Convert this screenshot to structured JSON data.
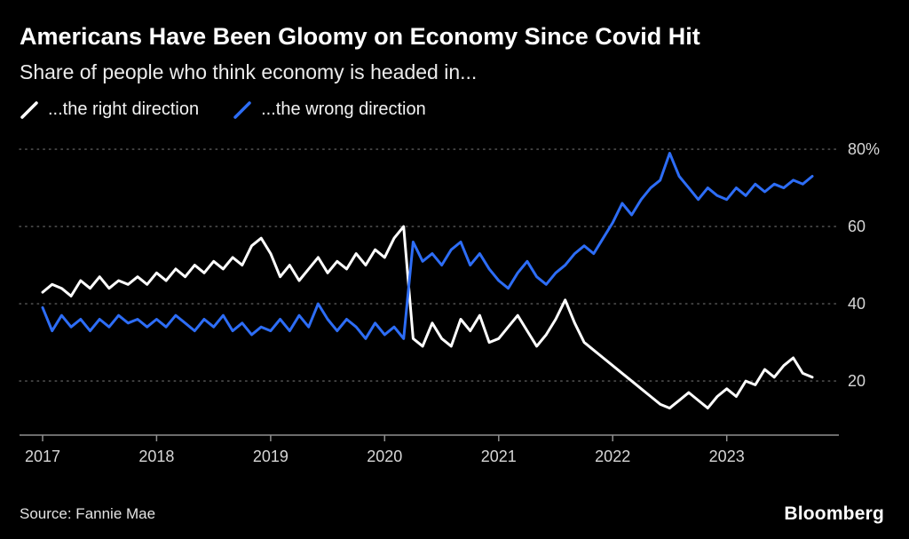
{
  "header": {
    "title": "Americans Have Been Gloomy on Economy Since Covid Hit",
    "subtitle": "Share of people who think economy is headed in..."
  },
  "legend": {
    "items": [
      {
        "label": "...the right direction",
        "color": "#ffffff"
      },
      {
        "label": "...the wrong direction",
        "color": "#2d6df6"
      }
    ]
  },
  "chart_data": {
    "type": "line",
    "title": "Americans Have Been Gloomy on Economy Since Covid Hit",
    "subtitle": "Share of people who think economy is headed in...",
    "x_unit": "month",
    "x_start": "2017-01",
    "x_end": "2023-10",
    "x_tick_labels": [
      "2017",
      "2018",
      "2019",
      "2020",
      "2021",
      "2022",
      "2023"
    ],
    "yticks": [
      20,
      40,
      60,
      80
    ],
    "ytick_labels": [
      "20",
      "40",
      "60",
      "80%"
    ],
    "ylim": [
      6,
      86
    ],
    "grid": "dotted-horizontal",
    "legend_position": "top-left",
    "series": [
      {
        "name": "...the right direction",
        "color": "#ffffff",
        "values": [
          43,
          45,
          44,
          42,
          46,
          44,
          47,
          44,
          46,
          45,
          47,
          45,
          48,
          46,
          49,
          47,
          50,
          48,
          51,
          49,
          52,
          50,
          55,
          57,
          53,
          47,
          50,
          46,
          49,
          52,
          48,
          51,
          49,
          53,
          50,
          54,
          52,
          57,
          60,
          31,
          29,
          35,
          31,
          29,
          36,
          33,
          37,
          30,
          31,
          34,
          37,
          33,
          29,
          32,
          36,
          41,
          35,
          30,
          28,
          26,
          24,
          22,
          20,
          18,
          16,
          14,
          13,
          15,
          17,
          15,
          13,
          16,
          18,
          16,
          20,
          19,
          23,
          21,
          24,
          26,
          22,
          21
        ]
      },
      {
        "name": "...the wrong direction",
        "color": "#2d6df6",
        "values": [
          39,
          33,
          37,
          34,
          36,
          33,
          36,
          34,
          37,
          35,
          36,
          34,
          36,
          34,
          37,
          35,
          33,
          36,
          34,
          37,
          33,
          35,
          32,
          34,
          33,
          36,
          33,
          37,
          34,
          40,
          36,
          33,
          36,
          34,
          31,
          35,
          32,
          34,
          31,
          56,
          51,
          53,
          50,
          54,
          56,
          50,
          53,
          49,
          46,
          44,
          48,
          51,
          47,
          45,
          48,
          50,
          53,
          55,
          53,
          57,
          61,
          66,
          63,
          67,
          70,
          72,
          79,
          73,
          70,
          67,
          70,
          68,
          67,
          70,
          68,
          71,
          69,
          71,
          70,
          72,
          71,
          73
        ]
      }
    ]
  },
  "footer": {
    "source": "Source: Fannie Mae",
    "brand": "Bloomberg"
  },
  "colors": {
    "background": "#000000",
    "grid": "#5a5a5a",
    "axis": "#8f8f8f",
    "tick_label": "#d6d6d6"
  }
}
